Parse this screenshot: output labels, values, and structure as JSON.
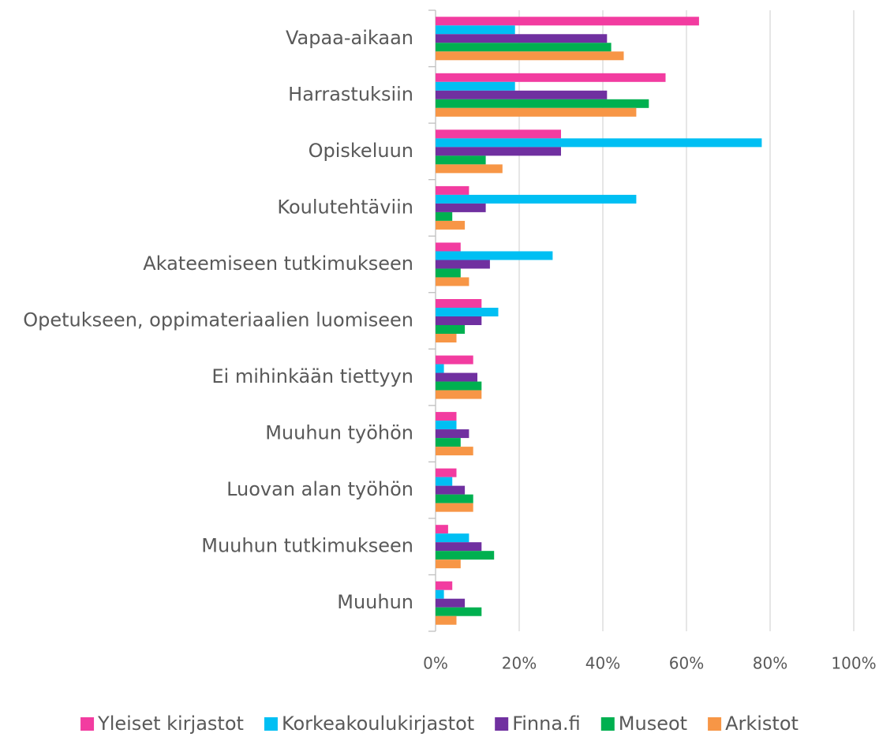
{
  "chart_data": {
    "type": "bar",
    "orientation": "horizontal",
    "categories": [
      "Vapaa-aikaan",
      "Harrastuksiin",
      "Opiskeluun",
      "Koulutehtäviin",
      "Akateemiseen tutkimukseen",
      "Opetukseen, oppimateriaalien luomiseen",
      "Ei mihinkään tiettyyn",
      "Muuhun työhön",
      "Luovan alan työhön",
      "Muuhun tutkimukseen",
      "Muuhun"
    ],
    "series": [
      {
        "name": "Yleiset kirjastot",
        "color": "#f23ca0",
        "values": [
          63,
          55,
          30,
          8,
          6,
          11,
          9,
          5,
          5,
          3,
          4
        ]
      },
      {
        "name": "Korkeakoulukirjastot",
        "color": "#00bff3",
        "values": [
          19,
          19,
          78,
          48,
          28,
          15,
          2,
          5,
          4,
          8,
          2
        ]
      },
      {
        "name": "Finna.fi",
        "color": "#7030a0",
        "values": [
          41,
          41,
          30,
          12,
          13,
          11,
          10,
          8,
          7,
          11,
          7
        ]
      },
      {
        "name": "Museot",
        "color": "#00b050",
        "values": [
          42,
          51,
          12,
          4,
          6,
          7,
          11,
          6,
          9,
          14,
          11
        ]
      },
      {
        "name": "Arkistot",
        "color": "#f79646",
        "values": [
          45,
          48,
          16,
          7,
          8,
          5,
          11,
          9,
          9,
          6,
          5
        ]
      }
    ],
    "xlim": [
      0,
      100
    ],
    "xticks": [
      {
        "value": 0,
        "label": "0%"
      },
      {
        "value": 20,
        "label": "20%"
      },
      {
        "value": 40,
        "label": "40%"
      },
      {
        "value": 60,
        "label": "60%"
      },
      {
        "value": 80,
        "label": "80%"
      },
      {
        "value": 100,
        "label": "100%"
      }
    ],
    "grid": true,
    "legend": "bottom"
  }
}
